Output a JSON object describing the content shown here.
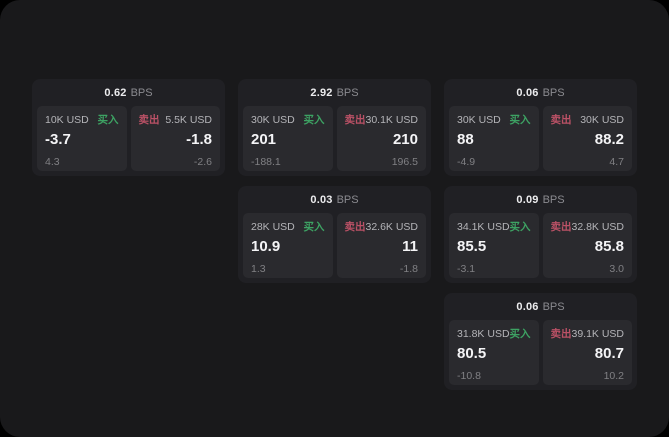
{
  "labels": {
    "bps_unit": "BPS",
    "buy_tag": "买入",
    "sell_tag": "卖出"
  },
  "colors": {
    "background": "#000000",
    "surface": "#19191b",
    "card": "#202024",
    "panel": "#2a2a2e",
    "buy": "#3da263",
    "sell": "#bb5166"
  },
  "cards": [
    {
      "bps": "0.62",
      "grid": {
        "row": 1,
        "col": 1
      },
      "buy": {
        "amount": "10K USD",
        "value": "-3.7",
        "sub": "4.3"
      },
      "sell": {
        "amount": "5.5K USD",
        "value": "-1.8",
        "sub": "-2.6"
      }
    },
    {
      "bps": "2.92",
      "grid": {
        "row": 1,
        "col": 2
      },
      "buy": {
        "amount": "30K USD",
        "value": "201",
        "sub": "-188.1"
      },
      "sell": {
        "amount": "30.1K USD",
        "value": "210",
        "sub": "196.5"
      }
    },
    {
      "bps": "0.06",
      "grid": {
        "row": 1,
        "col": 3
      },
      "buy": {
        "amount": "30K USD",
        "value": "88",
        "sub": "-4.9"
      },
      "sell": {
        "amount": "30K USD",
        "value": "88.2",
        "sub": "4.7"
      }
    },
    {
      "bps": "0.03",
      "grid": {
        "row": 2,
        "col": 2
      },
      "buy": {
        "amount": "28K USD",
        "value": "10.9",
        "sub": "1.3"
      },
      "sell": {
        "amount": "32.6K USD",
        "value": "11",
        "sub": "-1.8"
      }
    },
    {
      "bps": "0.09",
      "grid": {
        "row": 2,
        "col": 3
      },
      "buy": {
        "amount": "34.1K USD",
        "value": "85.5",
        "sub": "-3.1"
      },
      "sell": {
        "amount": "32.8K USD",
        "value": "85.8",
        "sub": "3.0"
      }
    },
    {
      "bps": "0.06",
      "grid": {
        "row": 3,
        "col": 3
      },
      "buy": {
        "amount": "31.8K USD",
        "value": "80.5",
        "sub": "-10.8"
      },
      "sell": {
        "amount": "39.1K USD",
        "value": "80.7",
        "sub": "10.2"
      }
    }
  ]
}
